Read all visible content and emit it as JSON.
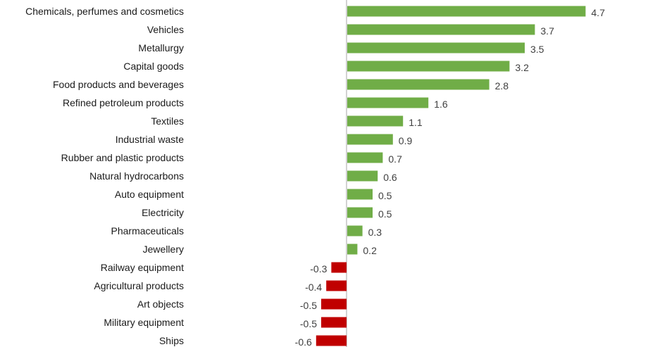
{
  "colors": {
    "positive": "#70AD47",
    "negative": "#C00000",
    "axis": "#A6A6A6",
    "text": "#1a1a1a",
    "value_text": "#404040"
  },
  "chart_data": {
    "type": "bar",
    "orientation": "horizontal",
    "title": "",
    "xlabel": "",
    "ylabel": "",
    "grid": false,
    "legend": "none",
    "xlim": [
      -0.6,
      4.7
    ],
    "categories": [
      "Chemicals, perfumes and cosmetics",
      "Vehicles",
      "Metallurgy",
      "Capital goods",
      "Food products and beverages",
      "Refined petroleum products",
      "Textiles",
      "Industrial waste",
      "Rubber and plastic products",
      "Natural hydrocarbons",
      "Auto equipment",
      "Electricity",
      "Pharmaceuticals",
      "Jewellery",
      "Railway equipment",
      "Agricultural products",
      "Art objects",
      "Military equipment",
      "Ships"
    ],
    "values": [
      4.7,
      3.7,
      3.5,
      3.2,
      2.8,
      1.6,
      1.1,
      0.9,
      0.7,
      0.6,
      0.5,
      0.5,
      0.3,
      0.2,
      -0.3,
      -0.4,
      -0.5,
      -0.5,
      -0.6
    ],
    "value_labels": [
      "4.7",
      "3.7",
      "3.5",
      "3.2",
      "2.8",
      "1.6",
      "1.1",
      "0.9",
      "0.7",
      "0.6",
      "0.5",
      "0.5",
      "0.3",
      "0.2",
      "-0.3",
      "-0.4",
      "-0.5",
      "-0.5",
      "-0.6"
    ]
  }
}
